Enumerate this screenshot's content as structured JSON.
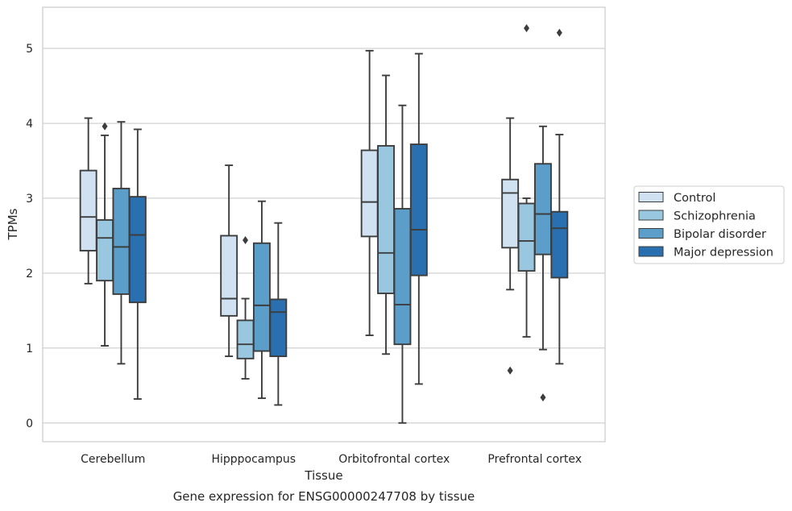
{
  "chart_data": {
    "type": "box",
    "title": "",
    "caption": "Gene expression for ENSG00000247708 by tissue",
    "xlabel": "Tissue",
    "ylabel": "TPMs",
    "ylim": [
      -0.25,
      5.55
    ],
    "yticks": [
      0,
      1,
      2,
      3,
      4,
      5
    ],
    "grid": "horizontal",
    "legend_position": "right",
    "categories": [
      "Cerebellum",
      "Hipppocampus",
      "Orbitofrontal cortex",
      "Prefrontal cortex"
    ],
    "series": [
      {
        "name": "Control",
        "color": "#d0e2f2",
        "boxes": [
          {
            "whislo": 1.86,
            "q1": 2.3,
            "med": 2.75,
            "q3": 3.37,
            "whishi": 4.07,
            "fliers": []
          },
          {
            "whislo": 0.89,
            "q1": 1.43,
            "med": 1.66,
            "q3": 2.5,
            "whishi": 3.44,
            "fliers": []
          },
          {
            "whislo": 1.17,
            "q1": 2.49,
            "med": 2.95,
            "q3": 3.64,
            "whishi": 4.97,
            "fliers": []
          },
          {
            "whislo": 1.78,
            "q1": 2.34,
            "med": 3.07,
            "q3": 3.25,
            "whishi": 4.07,
            "fliers": [
              0.7
            ]
          }
        ]
      },
      {
        "name": "Schizophrenia",
        "color": "#9ac7e0",
        "boxes": [
          {
            "whislo": 1.03,
            "q1": 1.9,
            "med": 2.47,
            "q3": 2.71,
            "whishi": 3.84,
            "fliers": [
              3.96
            ]
          },
          {
            "whislo": 0.59,
            "q1": 0.86,
            "med": 1.05,
            "q3": 1.37,
            "whishi": 1.66,
            "fliers": [
              2.44
            ]
          },
          {
            "whislo": 0.92,
            "q1": 1.73,
            "med": 2.27,
            "q3": 3.7,
            "whishi": 4.64,
            "fliers": []
          },
          {
            "whislo": 1.15,
            "q1": 2.03,
            "med": 2.43,
            "q3": 2.93,
            "whishi": 3.0,
            "fliers": [
              5.27
            ]
          }
        ]
      },
      {
        "name": "Bipolar disorder",
        "color": "#5a9ec9",
        "boxes": [
          {
            "whislo": 0.79,
            "q1": 1.72,
            "med": 2.35,
            "q3": 3.13,
            "whishi": 4.02,
            "fliers": []
          },
          {
            "whislo": 0.33,
            "q1": 0.96,
            "med": 1.57,
            "q3": 2.4,
            "whishi": 2.96,
            "fliers": []
          },
          {
            "whislo": 0.0,
            "q1": 1.05,
            "med": 1.58,
            "q3": 2.86,
            "whishi": 4.24,
            "fliers": []
          },
          {
            "whislo": 0.98,
            "q1": 2.25,
            "med": 2.79,
            "q3": 3.46,
            "whishi": 3.96,
            "fliers": [
              0.34
            ]
          }
        ]
      },
      {
        "name": "Major depression",
        "color": "#2a6faf",
        "boxes": [
          {
            "whislo": 0.32,
            "q1": 1.61,
            "med": 2.51,
            "q3": 3.02,
            "whishi": 3.92,
            "fliers": []
          },
          {
            "whislo": 0.24,
            "q1": 0.89,
            "med": 1.48,
            "q3": 1.65,
            "whishi": 2.67,
            "fliers": []
          },
          {
            "whislo": 0.52,
            "q1": 1.97,
            "med": 2.58,
            "q3": 3.72,
            "whishi": 4.93,
            "fliers": []
          },
          {
            "whislo": 0.79,
            "q1": 1.94,
            "med": 2.6,
            "q3": 2.82,
            "whishi": 3.85,
            "fliers": [
              5.21
            ]
          }
        ]
      }
    ]
  }
}
